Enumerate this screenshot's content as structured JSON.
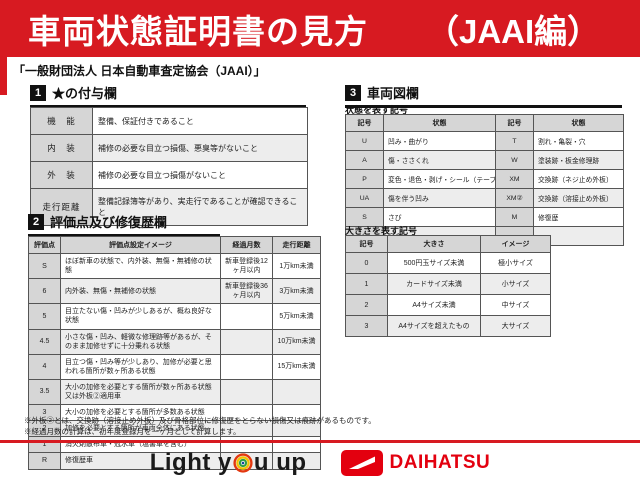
{
  "banner": {
    "title": "車両状態証明書の見方",
    "edition": "（JAAI編）"
  },
  "subtitle": "「一般財団法人 日本自動車査定協会（JAAI）」",
  "sections": {
    "one": {
      "num": "1",
      "title": "★の付与欄"
    },
    "two": {
      "num": "2",
      "title": "評価点及び修復歴欄"
    },
    "three": {
      "num": "3",
      "title": "車両図欄"
    }
  },
  "labels": {
    "condition": "状態を表す記号",
    "size": "大きさを表す記号"
  },
  "tables": {
    "star": {
      "sym_cols": [
        0
      ],
      "rows": [
        [
          "機　能",
          "整備、保証付きであること"
        ],
        [
          "内　装",
          "補修の必要な目立つ損傷、悪臭等がないこと"
        ],
        [
          "外　装",
          "補修の必要な目立つ損傷がないこと"
        ],
        [
          "走行距離",
          "整備記録簿等があり、実走行であることが確認できること"
        ]
      ]
    },
    "grade": {
      "headers": [
        "評価点",
        "評価点設定イメージ",
        "経過月数",
        "走行距離"
      ],
      "sym_cols": [
        0
      ],
      "rows": [
        [
          "S",
          "ほぼ新車の状態で、内外装、無傷・無補修の状態",
          "新車登録後12ヶ月以内",
          "1万km未満"
        ],
        [
          "6",
          "内外装、無傷・無補修の状態",
          "新車登録後36ヶ月以内",
          "3万km未満"
        ],
        [
          "5",
          "目立たない傷・凹みが少しあるが、概ね良好な状態",
          "",
          "5万km未満"
        ],
        [
          "4.5",
          "小さな傷・凹み、軽微な修理跡等があるが、そのまま加修せずに十分乗れる状態",
          "",
          "10万km未満"
        ],
        [
          "4",
          "目立つ傷・凹み等が少しあり、加修が必要と思われる箇所が数ヶ所ある状態",
          "",
          "15万km未満"
        ],
        [
          "3.5",
          "大小の加修を必要とする箇所が数ヶ所ある状態又は外板②適用車",
          "",
          ""
        ],
        [
          "3",
          "大小の加修を必要とする箇所が多数ある状態",
          "",
          ""
        ],
        [
          "2",
          "加修を必要とする箇所が車両全体にある状態",
          "",
          ""
        ],
        [
          "1",
          "消火剤散布車・冠水車（塩害車を含む）",
          "",
          ""
        ],
        [
          "R",
          "修復歴車",
          "",
          ""
        ]
      ]
    },
    "condition": {
      "headers": [
        "記号",
        "状態",
        "記号",
        "状態"
      ],
      "sym_cols": [
        0,
        2
      ],
      "rows": [
        [
          "U",
          "凹み・曲がり",
          "T",
          "割れ・亀裂・穴"
        ],
        [
          "A",
          "傷・ささくれ",
          "W",
          "塗装跡・板金修理跡"
        ],
        [
          "P",
          "変色・退色・剥げ・シール（テープ）跡",
          "XM",
          "交換跡（ネジ止め外板）"
        ],
        [
          "UA",
          "傷を伴う凹み",
          "XM②",
          "交換跡（溶接止め外板）"
        ],
        [
          "S",
          "さび",
          "M",
          "修復歴"
        ],
        [
          "C",
          "腐食",
          "",
          ""
        ]
      ]
    },
    "size": {
      "headers": [
        "記号",
        "大きさ",
        "イメージ"
      ],
      "sym_cols": [
        0
      ],
      "rows": [
        [
          "0",
          "500円玉サイズ未満",
          "極小サイズ"
        ],
        [
          "1",
          "カードサイズ未満",
          "小サイズ"
        ],
        [
          "2",
          "A4サイズ未満",
          "中サイズ"
        ],
        [
          "3",
          "A4サイズを超えたもの",
          "大サイズ"
        ]
      ]
    }
  },
  "footnotes": [
    "※外板②とは、交換跡（溶接止め外板）及び骨格部位に修復歴をとらない損傷又は痕跡があるものです。",
    "※経過月数の計算は、初年度登録月を一ヶ月として計算します。"
  ],
  "footer": {
    "slogan_left": "Light y",
    "slogan_right": "u up",
    "brand": "DAIHATSU"
  },
  "colors": {
    "banner_red": "#d71a21",
    "daihatsu_red": "#e3000f",
    "header_cell_gray": "#d6d6d6",
    "alt_row_gray": "#ededed"
  }
}
